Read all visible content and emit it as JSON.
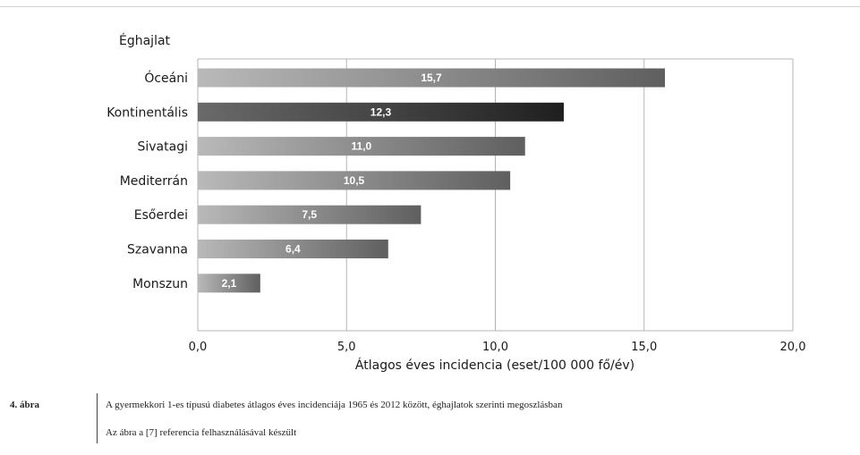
{
  "chart_data": {
    "type": "bar",
    "orientation": "horizontal",
    "category_heading": "Éghajlat",
    "categories": [
      "Óceáni",
      "Kontinentális",
      "Sivatagi",
      "Mediterrán",
      "Esőerdei",
      "Szavanna",
      "Monszun"
    ],
    "values": [
      15.7,
      12.3,
      11.0,
      10.5,
      7.5,
      6.4,
      2.1
    ],
    "value_labels": [
      "15,7",
      "12,3",
      "11,0",
      "10,5",
      "7,5",
      "6,4",
      "2,1"
    ],
    "xlabel": "Átlagos éves incidencia (eset/100 000 fő/év)",
    "xlim": [
      0,
      20
    ],
    "xticks": [
      0,
      5,
      10,
      15,
      20
    ],
    "xtick_labels": [
      "0,0",
      "5,0",
      "10,0",
      "15,0",
      "20,0"
    ],
    "grid": true,
    "highlighted_category": "Kontinentális",
    "colors": {
      "bar_light": "#b9b9b9",
      "bar_dark": "#5f5f5f",
      "highlight_light": "#6a6a6a",
      "highlight_dark": "#1f1f1f",
      "grid": "#b5b5b5"
    }
  },
  "caption": {
    "figure_number": "4. ábra",
    "text": "A gyermekkori 1-es típusú diabetes átlagos éves incidenciája 1965 és 2012 között, éghajlatok szerinti megoszlásban",
    "source": "Az ábra a [7] referencia felhasználásával készült"
  }
}
